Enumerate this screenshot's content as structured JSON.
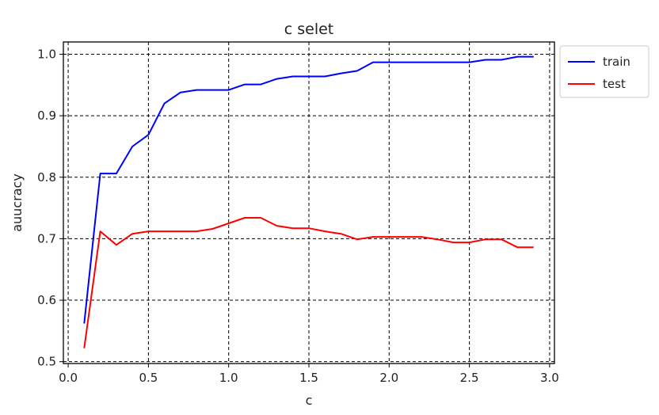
{
  "chart_data": {
    "type": "line",
    "title": "c selet",
    "xlabel": "c",
    "ylabel": "auucracy",
    "xlim": [
      -0.03,
      3.03
    ],
    "ylim": [
      0.497,
      1.02
    ],
    "xticks": [
      0.0,
      0.5,
      1.0,
      1.5,
      2.0,
      2.5,
      3.0
    ],
    "xtick_labels": [
      "0.0",
      "0.5",
      "1.0",
      "1.5",
      "2.0",
      "2.5",
      "3.0"
    ],
    "yticks": [
      0.5,
      0.6,
      0.7,
      0.8,
      0.9,
      1.0
    ],
    "ytick_labels": [
      "0.5",
      "0.6",
      "0.7",
      "0.8",
      "0.9",
      "1.0"
    ],
    "grid": true,
    "legend_position": "outside-top-right",
    "x": [
      0.1,
      0.2,
      0.3,
      0.4,
      0.5,
      0.6,
      0.7,
      0.8,
      0.9,
      1.0,
      1.1,
      1.2,
      1.3,
      1.4,
      1.5,
      1.6,
      1.7,
      1.8,
      1.9,
      2.0,
      2.1,
      2.2,
      2.3,
      2.4,
      2.5,
      2.6,
      2.7,
      2.8,
      2.9
    ],
    "series": [
      {
        "name": "train",
        "color": "#0000ff",
        "values": [
          0.562,
          0.806,
          0.806,
          0.85,
          0.869,
          0.92,
          0.938,
          0.942,
          0.942,
          0.942,
          0.951,
          0.951,
          0.96,
          0.964,
          0.964,
          0.964,
          0.969,
          0.973,
          0.987,
          0.987,
          0.987,
          0.987,
          0.987,
          0.987,
          0.987,
          0.991,
          0.991,
          0.996,
          0.996
        ]
      },
      {
        "name": "test",
        "color": "#ff0000",
        "values": [
          0.522,
          0.712,
          0.69,
          0.708,
          0.712,
          0.712,
          0.712,
          0.712,
          0.716,
          0.725,
          0.734,
          0.734,
          0.721,
          0.717,
          0.717,
          0.712,
          0.708,
          0.699,
          0.703,
          0.703,
          0.703,
          0.703,
          0.699,
          0.694,
          0.694,
          0.699,
          0.699,
          0.686,
          0.686
        ]
      }
    ]
  }
}
